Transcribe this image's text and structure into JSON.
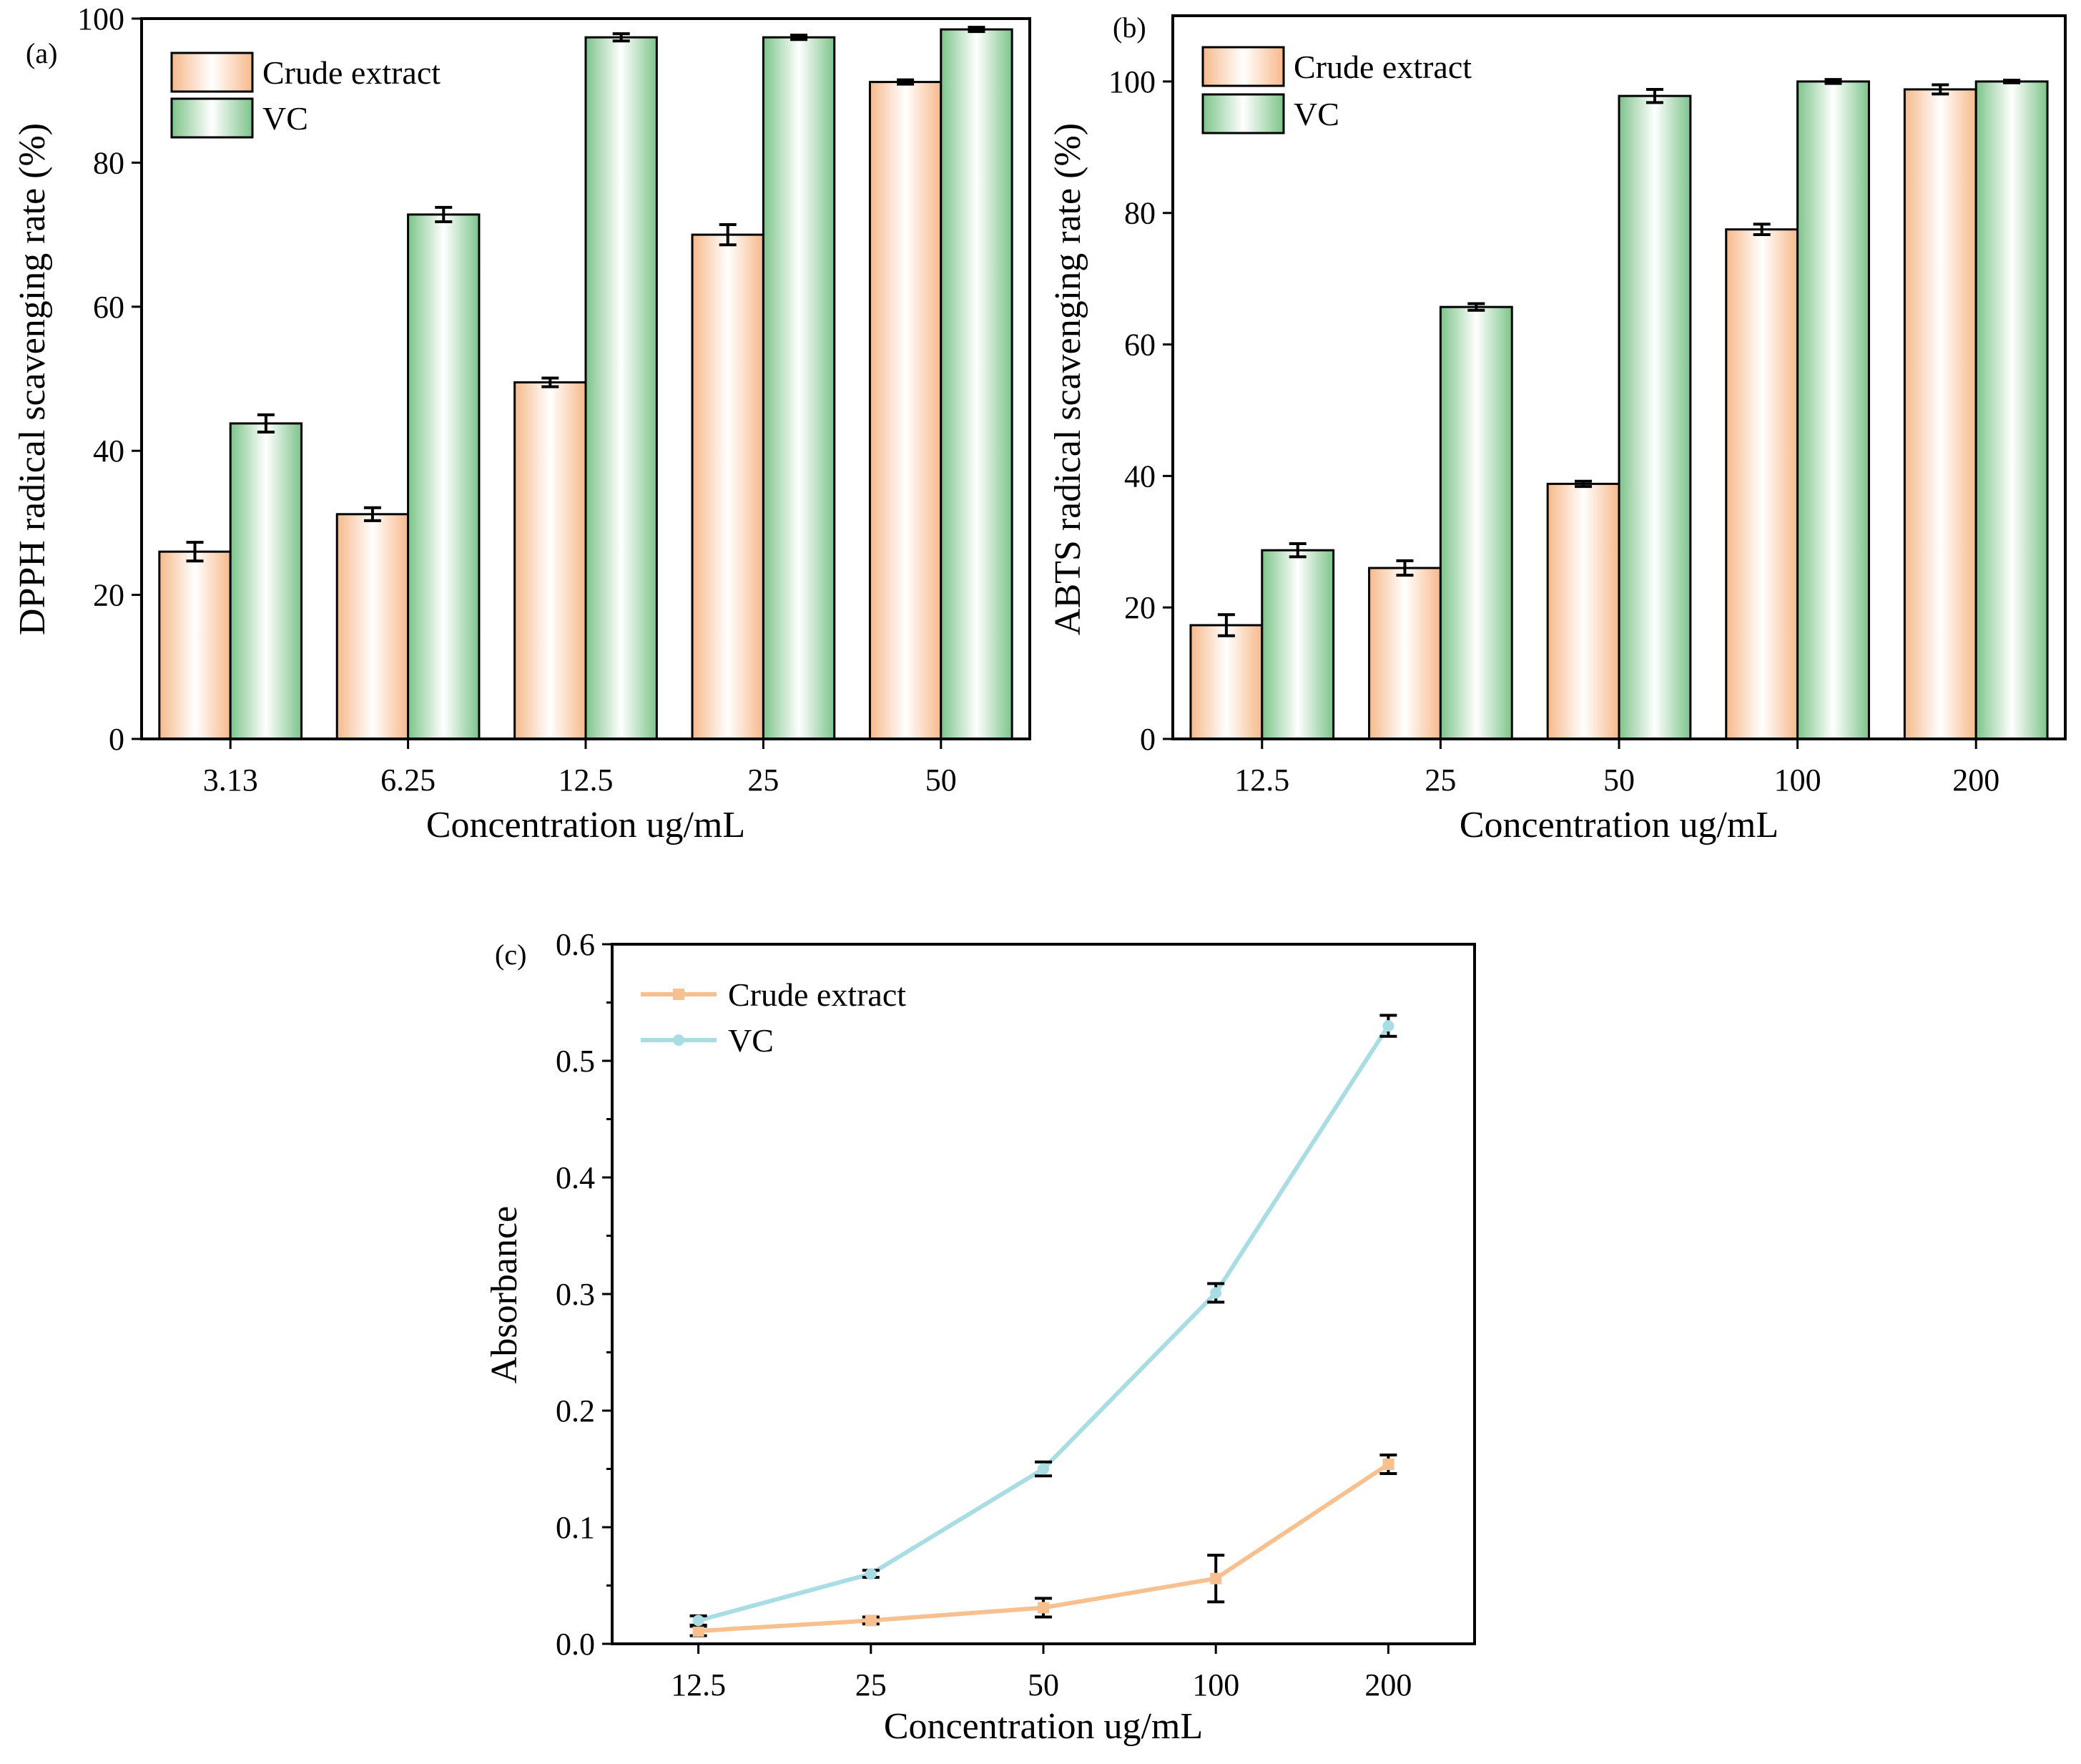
{
  "figure": {
    "panel_labels": [
      "(a)",
      "(b)",
      "(c)"
    ]
  },
  "colors": {
    "crude_bar_edge": "#f6b98a",
    "vc_bar_edge": "#7cc48a",
    "crude_line": "#f8c08e",
    "vc_line": "#a8dde3",
    "axis": "#000000",
    "error": "#000000"
  },
  "chart_data": [
    {
      "type": "bar",
      "panel": "(a)",
      "title": "",
      "xlabel": "Concentration ug/mL",
      "ylabel": "DPPH radical scavenging rate (%)",
      "ylim": [
        0,
        100
      ],
      "yticks": [
        0,
        20,
        40,
        60,
        80,
        100
      ],
      "categories": [
        "3.13",
        "6.25",
        "12.5",
        "25",
        "50"
      ],
      "legend_position": "top-left",
      "series": [
        {
          "name": "Crude extract",
          "values": [
            26,
            31.2,
            49.5,
            70,
            91.2
          ],
          "errors": [
            1.3,
            0.9,
            0.6,
            1.4,
            0.3
          ]
        },
        {
          "name": "VC",
          "values": [
            43.8,
            72.8,
            97.4,
            97.4,
            98.5
          ],
          "errors": [
            1.2,
            1.0,
            0.5,
            0.3,
            0.3
          ]
        }
      ]
    },
    {
      "type": "bar",
      "panel": "(b)",
      "title": "",
      "xlabel": "Concentration ug/mL",
      "ylabel": "ABTS radical scavenging rate (%)",
      "ylim": [
        0,
        110
      ],
      "yticks": [
        0,
        20,
        40,
        60,
        80,
        100
      ],
      "categories": [
        "12.5",
        "25",
        "50",
        "100",
        "200"
      ],
      "legend_position": "top-left",
      "series": [
        {
          "name": "Crude extract",
          "values": [
            17.3,
            26,
            38.8,
            77.5,
            98.8
          ],
          "errors": [
            1.6,
            1.1,
            0.4,
            0.8,
            0.7
          ]
        },
        {
          "name": "VC",
          "values": [
            28.7,
            65.7,
            97.8,
            100,
            100
          ],
          "errors": [
            1.0,
            0.5,
            1.0,
            0.3,
            0.2
          ]
        }
      ]
    },
    {
      "type": "line",
      "panel": "(c)",
      "title": "",
      "xlabel": "Concentration ug/mL",
      "ylabel": "Absorbance",
      "ylim": [
        0,
        0.6
      ],
      "yticks": [
        "0.0",
        "0.1",
        "0.2",
        "0.3",
        "0.4",
        "0.5",
        "0.6"
      ],
      "categories": [
        "12.5",
        "25",
        "50",
        "100",
        "200"
      ],
      "legend_position": "top-left",
      "series": [
        {
          "name": "Crude extract",
          "values": [
            0.011,
            0.02,
            0.031,
            0.056,
            0.154
          ],
          "errors": [
            0.004,
            0.003,
            0.008,
            0.02,
            0.008
          ]
        },
        {
          "name": "VC",
          "values": [
            0.02,
            0.06,
            0.15,
            0.301,
            0.53
          ],
          "errors": [
            0.004,
            0.003,
            0.006,
            0.008,
            0.009
          ]
        }
      ]
    }
  ]
}
